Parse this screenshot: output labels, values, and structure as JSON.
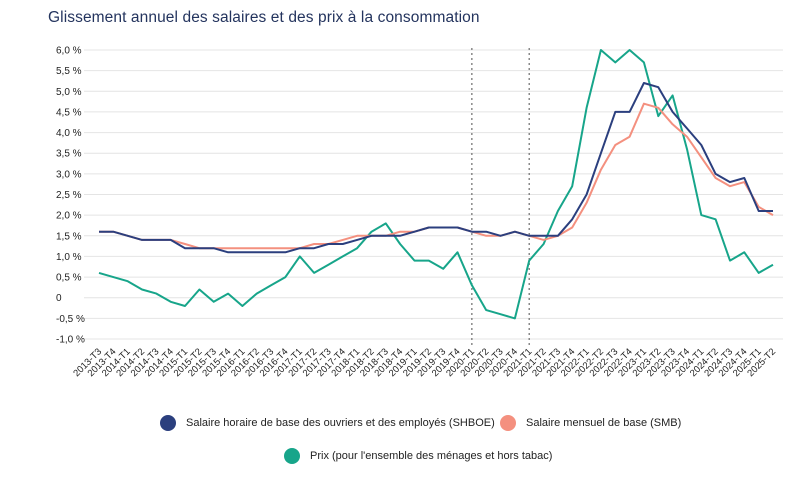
{
  "chart_data": {
    "type": "line",
    "title": "Glissement annuel des salaires et des prix à la consommation",
    "categories": [
      "2013-T3",
      "2013-T4",
      "2014-T1",
      "2014-T2",
      "2014-T3",
      "2014-T4",
      "2015-T1",
      "2015-T2",
      "2015-T3",
      "2015-T4",
      "2016-T1",
      "2016-T2",
      "2016-T3",
      "2016-T4",
      "2017-T1",
      "2017-T2",
      "2017-T3",
      "2017-T4",
      "2018-T1",
      "2018-T2",
      "2018-T3",
      "2018-T4",
      "2019-T1",
      "2019-T2",
      "2019-T3",
      "2019-T4",
      "2020-T1",
      "2020-T2",
      "2020-T3",
      "2020-T4",
      "2021-T1",
      "2021-T2",
      "2021-T3",
      "2021-T4",
      "2022-T1",
      "2022-T2",
      "2022-T3",
      "2022-T4",
      "2023-T1",
      "2023-T2",
      "2023-T3",
      "2023-T4",
      "2024-T1",
      "2024-T2",
      "2024-T3",
      "2024-T4",
      "2025-T1",
      "2025-T2"
    ],
    "yticks": [
      "-1,0 %",
      "-0,5 %",
      "0",
      "0,5 %",
      "1,0 %",
      "1,5 %",
      "2,0 %",
      "2,5 %",
      "3,0 %",
      "3,5 %",
      "4,0 %",
      "4,5 %",
      "5,0 %",
      "5,5 %",
      "6,0 %"
    ],
    "ylim": [
      -1.0,
      6.0
    ],
    "vlines": [
      "2020-T1",
      "2021-T1"
    ],
    "series": [
      {
        "name": "Salaire horaire de base des ouvriers et des employés (SHBOE)",
        "color": "#2b3f7e",
        "values": [
          1.6,
          1.6,
          1.5,
          1.4,
          1.4,
          1.4,
          1.2,
          1.2,
          1.2,
          1.1,
          1.1,
          1.1,
          1.1,
          1.1,
          1.2,
          1.2,
          1.3,
          1.3,
          1.4,
          1.5,
          1.5,
          1.5,
          1.6,
          1.7,
          1.7,
          1.7,
          1.6,
          1.6,
          1.5,
          1.6,
          1.5,
          1.5,
          1.5,
          1.9,
          2.5,
          3.5,
          4.5,
          4.5,
          5.2,
          5.1,
          4.5,
          4.1,
          3.7,
          3.0,
          2.8,
          2.9,
          2.1,
          2.1
        ]
      },
      {
        "name": "Salaire mensuel de base (SMB)",
        "color": "#f4907f",
        "values": [
          1.6,
          1.6,
          1.5,
          1.4,
          1.4,
          1.4,
          1.3,
          1.2,
          1.2,
          1.2,
          1.2,
          1.2,
          1.2,
          1.2,
          1.2,
          1.3,
          1.3,
          1.4,
          1.5,
          1.5,
          1.5,
          1.6,
          1.6,
          1.7,
          1.7,
          1.7,
          1.6,
          1.5,
          1.5,
          1.6,
          1.5,
          1.4,
          1.5,
          1.7,
          2.3,
          3.1,
          3.7,
          3.9,
          4.7,
          4.6,
          4.2,
          3.9,
          3.4,
          2.9,
          2.7,
          2.8,
          2.2,
          2.0
        ]
      },
      {
        "name": "Prix (pour l'ensemble des ménages et hors tabac)",
        "color": "#17a58a",
        "values": [
          0.6,
          0.5,
          0.4,
          0.2,
          0.1,
          -0.1,
          -0.2,
          0.2,
          -0.1,
          0.1,
          -0.2,
          0.1,
          0.3,
          0.5,
          1.0,
          0.6,
          0.8,
          1.0,
          1.2,
          1.6,
          1.8,
          1.3,
          0.9,
          0.9,
          0.7,
          1.1,
          0.3,
          -0.3,
          -0.4,
          -0.5,
          0.9,
          1.3,
          2.1,
          2.7,
          4.6,
          6.0,
          5.7,
          6.0,
          5.7,
          4.4,
          4.9,
          3.6,
          2.0,
          1.9,
          0.9,
          1.1,
          0.6,
          0.8
        ]
      }
    ]
  },
  "legend": [
    {
      "label": "Salaire horaire de base des ouvriers et des employés (SHBOE)",
      "color": "#2b3f7e"
    },
    {
      "label": "Salaire mensuel de base (SMB)",
      "color": "#f4907f"
    },
    {
      "label": "Prix (pour l'ensemble des ménages et hors tabac)",
      "color": "#17a58a"
    }
  ]
}
